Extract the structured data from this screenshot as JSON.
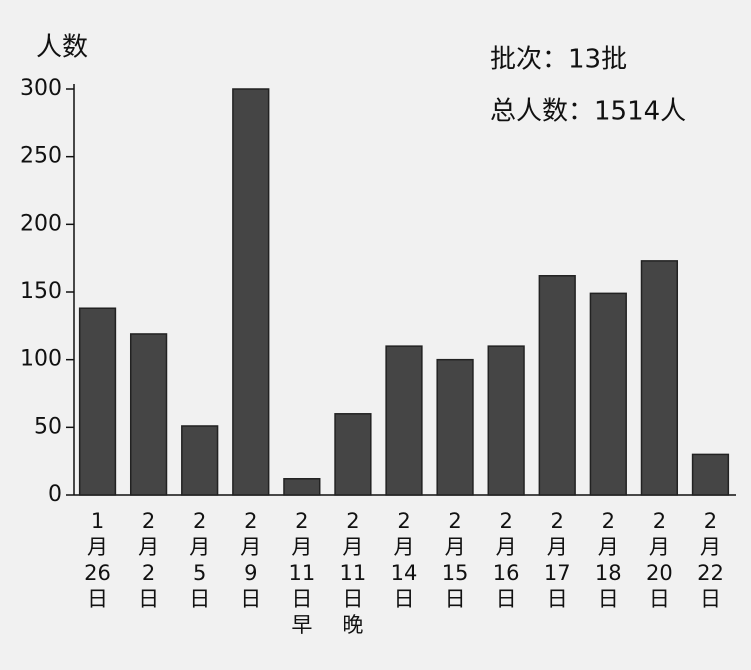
{
  "chart_data": {
    "type": "bar",
    "y_label": "人数",
    "annotations": [
      "批次：13批",
      "总人数：1514人"
    ],
    "categories": [
      "1月26日",
      "2月2日",
      "2月5日",
      "2月9日",
      "2月11日早",
      "2月11日晚",
      "2月14日",
      "2月15日",
      "2月16日",
      "2月17日",
      "2月18日",
      "2月20日",
      "2月22日"
    ],
    "values": [
      138,
      119,
      51,
      300,
      12,
      60,
      110,
      100,
      110,
      162,
      149,
      173,
      30
    ],
    "color": "#454545",
    "ylim": [
      0,
      300
    ],
    "yticks": [
      0,
      50,
      100,
      150,
      200,
      250,
      300
    ],
    "grid": false
  }
}
